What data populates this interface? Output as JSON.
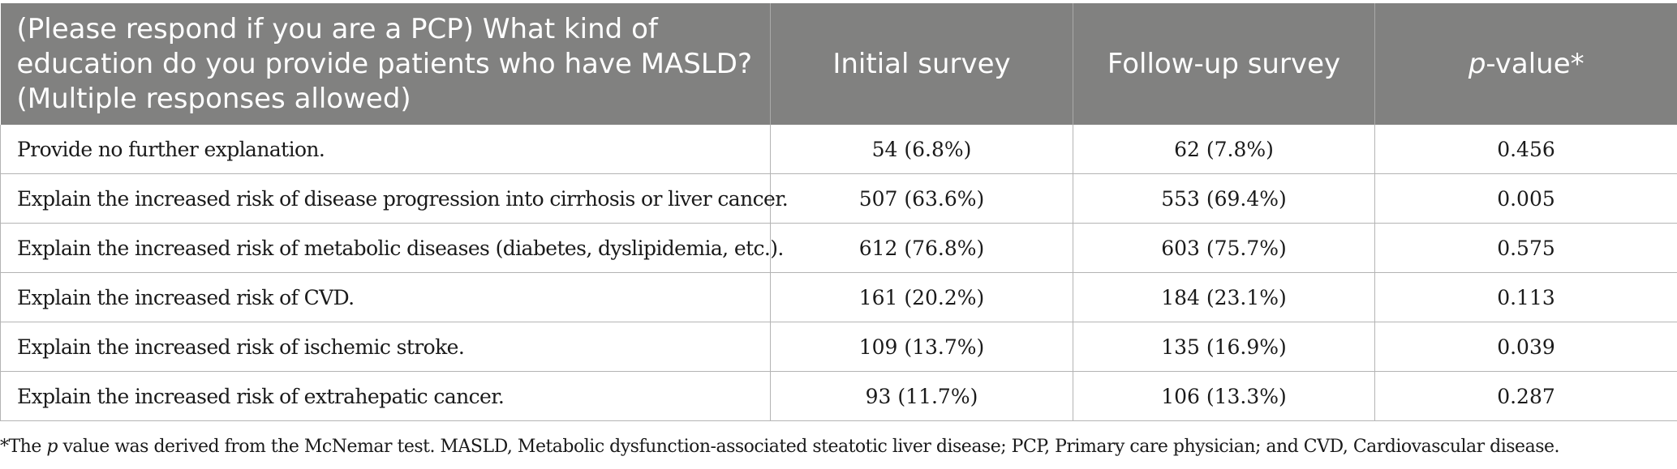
{
  "table": {
    "headers": {
      "question": "(Please respond if you are a PCP) What kind of education do you provide patients who have MASLD? (Multiple responses allowed)",
      "initial": "Initial survey",
      "followup": "Follow-up survey",
      "p_italic": "p",
      "p_rest": "-value*"
    },
    "rows": [
      {
        "label": "Provide no further explanation.",
        "initial": "54 (6.8%)",
        "followup": "62 (7.8%)",
        "p": "0.456"
      },
      {
        "label": "Explain the increased risk of disease progression into cirrhosis or liver cancer.",
        "initial": "507 (63.6%)",
        "followup": "553 (69.4%)",
        "p": "0.005"
      },
      {
        "label": "Explain the increased risk of metabolic diseases (diabetes, dyslipidemia, etc.).",
        "initial": "612 (76.8%)",
        "followup": "603 (75.7%)",
        "p": "0.575"
      },
      {
        "label": "Explain the increased risk of CVD.",
        "initial": "161 (20.2%)",
        "followup": "184 (23.1%)",
        "p": "0.113"
      },
      {
        "label": "Explain the increased risk of ischemic stroke.",
        "initial": "109 (13.7%)",
        "followup": "135 (16.9%)",
        "p": "0.039"
      },
      {
        "label": "Explain the increased risk of extrahepatic cancer.",
        "initial": "93 (11.7%)",
        "followup": "106 (13.3%)",
        "p": "0.287"
      }
    ]
  },
  "footnote": {
    "prefix": "*The ",
    "italic": "p",
    "rest": " value was derived from the McNemar test. MASLD, Metabolic dysfunction-associated steatotic liver disease; PCP, Primary care physician; and CVD, Cardiovascular disease."
  }
}
